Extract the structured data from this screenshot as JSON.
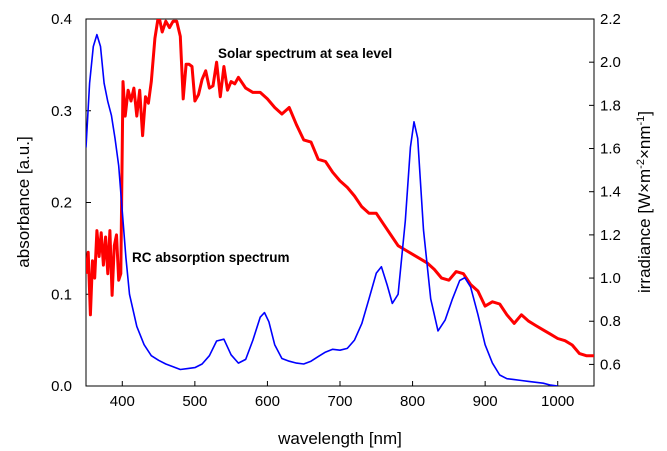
{
  "chart_data": {
    "type": "line",
    "xlabel": "wavelength [nm]",
    "ylabel_left": "absorbance [a.u.]",
    "ylabel_right_parts": [
      "irradiance [W×m",
      "-2",
      "×nm",
      "-1",
      "]"
    ],
    "xlim": [
      350,
      1050
    ],
    "ylim_left": [
      0,
      0.4
    ],
    "ylim_right": [
      0.5,
      2.2
    ],
    "x_ticks": [
      "400",
      "500",
      "600",
      "700",
      "800",
      "900",
      "1000"
    ],
    "y_left_ticks": [
      "0.0",
      "0.1",
      "0.2",
      "0.3",
      "0.4"
    ],
    "y_right_ticks": [
      "0.6",
      "0.8",
      "1.0",
      "1.2",
      "1.4",
      "1.6",
      "1.8",
      "2.0",
      "2.2"
    ],
    "grid": false,
    "annotations": {
      "solar": "Solar spectrum at sea level",
      "rc": "RC absorption spectrum"
    },
    "series": [
      {
        "name": "Solar spectrum at sea level",
        "axis": "right",
        "color": "#ff0000",
        "points": [
          [
            350,
            1.02
          ],
          [
            353,
            1.12
          ],
          [
            356,
            0.83
          ],
          [
            359,
            1.08
          ],
          [
            362,
            1.0
          ],
          [
            365,
            1.22
          ],
          [
            368,
            1.1
          ],
          [
            371,
            1.21
          ],
          [
            374,
            1.06
          ],
          [
            377,
            1.19
          ],
          [
            380,
            1.02
          ],
          [
            383,
            1.22
          ],
          [
            386,
            0.92
          ],
          [
            389,
            1.15
          ],
          [
            392,
            1.2
          ],
          [
            395,
            0.99
          ],
          [
            398,
            1.02
          ],
          [
            401,
            1.91
          ],
          [
            404,
            1.75
          ],
          [
            408,
            1.87
          ],
          [
            412,
            1.82
          ],
          [
            416,
            1.88
          ],
          [
            420,
            1.75
          ],
          [
            424,
            1.87
          ],
          [
            428,
            1.66
          ],
          [
            432,
            1.84
          ],
          [
            436,
            1.81
          ],
          [
            440,
            1.91
          ],
          [
            445,
            2.11
          ],
          [
            450,
            2.22
          ],
          [
            455,
            2.14
          ],
          [
            460,
            2.19
          ],
          [
            465,
            2.16
          ],
          [
            470,
            2.19
          ],
          [
            475,
            2.19
          ],
          [
            480,
            2.12
          ],
          [
            484,
            1.83
          ],
          [
            488,
            1.99
          ],
          [
            492,
            1.99
          ],
          [
            496,
            1.98
          ],
          [
            500,
            1.82
          ],
          [
            505,
            1.85
          ],
          [
            510,
            1.92
          ],
          [
            515,
            1.96
          ],
          [
            520,
            1.88
          ],
          [
            525,
            1.89
          ],
          [
            530,
            2.0
          ],
          [
            535,
            1.84
          ],
          [
            540,
            1.98
          ],
          [
            545,
            1.87
          ],
          [
            550,
            1.91
          ],
          [
            555,
            1.9
          ],
          [
            560,
            1.93
          ],
          [
            570,
            1.88
          ],
          [
            580,
            1.86
          ],
          [
            590,
            1.86
          ],
          [
            600,
            1.83
          ],
          [
            610,
            1.79
          ],
          [
            620,
            1.76
          ],
          [
            630,
            1.79
          ],
          [
            640,
            1.71
          ],
          [
            650,
            1.64
          ],
          [
            660,
            1.63
          ],
          [
            670,
            1.55
          ],
          [
            680,
            1.54
          ],
          [
            690,
            1.49
          ],
          [
            700,
            1.45
          ],
          [
            710,
            1.42
          ],
          [
            720,
            1.38
          ],
          [
            730,
            1.33
          ],
          [
            740,
            1.3
          ],
          [
            750,
            1.3
          ],
          [
            760,
            1.25
          ],
          [
            770,
            1.2
          ],
          [
            780,
            1.15
          ],
          [
            790,
            1.13
          ],
          [
            800,
            1.11
          ],
          [
            810,
            1.09
          ],
          [
            820,
            1.07
          ],
          [
            830,
            1.04
          ],
          [
            840,
            1.0
          ],
          [
            850,
            0.99
          ],
          [
            860,
            1.03
          ],
          [
            870,
            1.02
          ],
          [
            880,
            0.97
          ],
          [
            890,
            0.94
          ],
          [
            900,
            0.87
          ],
          [
            910,
            0.89
          ],
          [
            920,
            0.88
          ],
          [
            930,
            0.83
          ],
          [
            940,
            0.79
          ],
          [
            950,
            0.83
          ],
          [
            960,
            0.8
          ],
          [
            970,
            0.78
          ],
          [
            980,
            0.76
          ],
          [
            990,
            0.74
          ],
          [
            1000,
            0.72
          ],
          [
            1010,
            0.71
          ],
          [
            1020,
            0.69
          ],
          [
            1030,
            0.65
          ],
          [
            1040,
            0.64
          ],
          [
            1050,
            0.64
          ]
        ]
      },
      {
        "name": "RC absorption spectrum",
        "axis": "left",
        "color": "#0000ff",
        "points": [
          [
            350,
            0.26
          ],
          [
            355,
            0.33
          ],
          [
            360,
            0.37
          ],
          [
            365,
            0.383
          ],
          [
            370,
            0.37
          ],
          [
            375,
            0.33
          ],
          [
            380,
            0.31
          ],
          [
            385,
            0.295
          ],
          [
            390,
            0.27
          ],
          [
            395,
            0.24
          ],
          [
            400,
            0.19
          ],
          [
            405,
            0.14
          ],
          [
            410,
            0.1
          ],
          [
            420,
            0.065
          ],
          [
            430,
            0.045
          ],
          [
            440,
            0.033
          ],
          [
            450,
            0.028
          ],
          [
            460,
            0.024
          ],
          [
            470,
            0.021
          ],
          [
            480,
            0.018
          ],
          [
            490,
            0.019
          ],
          [
            500,
            0.02
          ],
          [
            510,
            0.024
          ],
          [
            520,
            0.033
          ],
          [
            530,
            0.049
          ],
          [
            540,
            0.051
          ],
          [
            550,
            0.034
          ],
          [
            560,
            0.025
          ],
          [
            570,
            0.029
          ],
          [
            580,
            0.05
          ],
          [
            590,
            0.075
          ],
          [
            596,
            0.08
          ],
          [
            602,
            0.07
          ],
          [
            610,
            0.045
          ],
          [
            620,
            0.03
          ],
          [
            630,
            0.027
          ],
          [
            640,
            0.025
          ],
          [
            650,
            0.024
          ],
          [
            660,
            0.027
          ],
          [
            670,
            0.032
          ],
          [
            680,
            0.037
          ],
          [
            690,
            0.04
          ],
          [
            700,
            0.039
          ],
          [
            710,
            0.041
          ],
          [
            720,
            0.05
          ],
          [
            730,
            0.068
          ],
          [
            740,
            0.095
          ],
          [
            750,
            0.123
          ],
          [
            757,
            0.13
          ],
          [
            765,
            0.11
          ],
          [
            772,
            0.09
          ],
          [
            780,
            0.1
          ],
          [
            790,
            0.18
          ],
          [
            797,
            0.26
          ],
          [
            802,
            0.288
          ],
          [
            807,
            0.27
          ],
          [
            815,
            0.17
          ],
          [
            825,
            0.095
          ],
          [
            835,
            0.06
          ],
          [
            845,
            0.072
          ],
          [
            855,
            0.095
          ],
          [
            865,
            0.115
          ],
          [
            872,
            0.118
          ],
          [
            880,
            0.108
          ],
          [
            890,
            0.078
          ],
          [
            900,
            0.045
          ],
          [
            910,
            0.025
          ],
          [
            920,
            0.012
          ],
          [
            930,
            0.008
          ],
          [
            940,
            0.007
          ],
          [
            950,
            0.006
          ],
          [
            960,
            0.005
          ],
          [
            970,
            0.004
          ],
          [
            980,
            0.003
          ],
          [
            990,
            0.001
          ],
          [
            1000,
            0.0
          ]
        ]
      }
    ]
  }
}
